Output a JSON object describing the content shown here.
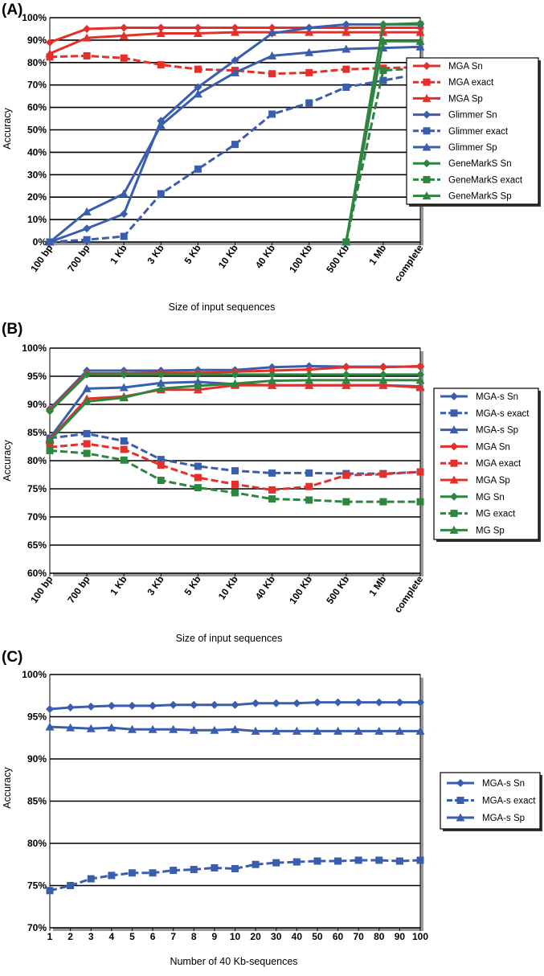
{
  "colors": {
    "MGA": "#e4302b",
    "Glimmer": "#3a5dae",
    "GeneMarkS": "#2e8540",
    "MGA-s": "#3a5dae",
    "MG": "#2e8540"
  },
  "chart_data": [
    {
      "panel_label": "(A)",
      "type": "line",
      "categories": [
        "100 bp",
        "700 bp",
        "1 Kb",
        "3 Kb",
        "5 Kb",
        "10 Kb",
        "40 Kb",
        "100 Kb",
        "500 Kb",
        "1 Mb",
        "complete"
      ],
      "ylim": [
        0,
        100
      ],
      "yticks": [
        0,
        10,
        20,
        30,
        40,
        50,
        60,
        70,
        80,
        90,
        100
      ],
      "ytick_labels": [
        "0%",
        "10%",
        "20%",
        "30%",
        "40%",
        "50%",
        "60%",
        "70%",
        "80%",
        "90%",
        "100%"
      ],
      "ylabel": "Accuracy",
      "xlabel": "Size of input sequences",
      "legend_position": "right",
      "series": [
        {
          "name": "MGA Sn",
          "color": "#e4302b",
          "marker": "diamond",
          "dash": false,
          "values": [
            89,
            95,
            95.5,
            95.5,
            95.5,
            95.5,
            95.5,
            95.5,
            95.5,
            95.5,
            95.5
          ]
        },
        {
          "name": "MGA exact",
          "color": "#e4302b",
          "marker": "square",
          "dash": true,
          "values": [
            82.5,
            83,
            82,
            79,
            77,
            76.5,
            75,
            75.5,
            77,
            77.5,
            78
          ]
        },
        {
          "name": "MGA Sp",
          "color": "#e4302b",
          "marker": "triangle",
          "dash": false,
          "values": [
            84,
            91,
            92,
            93,
            93,
            93.5,
            93.5,
            93.5,
            93.5,
            93.5,
            93.5
          ]
        },
        {
          "name": "Glimmer Sn",
          "color": "#3a5dae",
          "marker": "diamond",
          "dash": false,
          "values": [
            0,
            6,
            12.5,
            54,
            69,
            81,
            93,
            95.5,
            97,
            97,
            97
          ]
        },
        {
          "name": "Glimmer exact",
          "color": "#3a5dae",
          "marker": "square",
          "dash": true,
          "values": [
            0,
            1,
            2.5,
            21.5,
            32.5,
            43.5,
            57,
            62,
            69,
            72,
            75
          ]
        },
        {
          "name": "Glimmer Sp",
          "color": "#3a5dae",
          "marker": "triangle",
          "dash": false,
          "values": [
            0,
            13.5,
            21.5,
            52,
            66,
            75.5,
            83,
            84.5,
            86,
            86.5,
            87
          ]
        },
        {
          "name": "GeneMarkS Sn",
          "color": "#2e8540",
          "marker": "diamond",
          "dash": false,
          "values": [
            null,
            null,
            null,
            null,
            null,
            null,
            null,
            null,
            0,
            97,
            97.5
          ]
        },
        {
          "name": "GeneMarkS exact",
          "color": "#2e8540",
          "marker": "square",
          "dash": true,
          "values": [
            null,
            null,
            null,
            null,
            null,
            null,
            null,
            null,
            0,
            76.5,
            77.5
          ]
        },
        {
          "name": "GeneMarkS Sp",
          "color": "#2e8540",
          "marker": "triangle",
          "dash": false,
          "values": [
            null,
            null,
            null,
            null,
            null,
            null,
            null,
            null,
            0,
            89.5,
            89.5
          ]
        }
      ]
    },
    {
      "panel_label": "(B)",
      "type": "line",
      "categories": [
        "100 bp",
        "700 bp",
        "1 Kb",
        "3 Kb",
        "5 Kb",
        "10 Kb",
        "40 Kb",
        "100 Kb",
        "500 Kb",
        "1 Mb",
        "complete"
      ],
      "ylim": [
        60,
        100
      ],
      "yticks": [
        60,
        65,
        70,
        75,
        80,
        85,
        90,
        95,
        100
      ],
      "ytick_labels": [
        "60%",
        "65%",
        "70%",
        "75%",
        "80%",
        "85%",
        "90%",
        "95%",
        "100%"
      ],
      "ylabel": "Accuracy",
      "xlabel": "Size of input sequences",
      "legend_position": "right",
      "series": [
        {
          "name": "MGA-s Sn",
          "color": "#3a5dae",
          "marker": "diamond",
          "dash": false,
          "values": [
            89.2,
            96,
            96,
            96,
            96.1,
            96.1,
            96.6,
            96.8,
            96.7,
            96.7,
            96.7
          ]
        },
        {
          "name": "MGA-s exact",
          "color": "#3a5dae",
          "marker": "square",
          "dash": true,
          "values": [
            84,
            84.8,
            83.5,
            80.2,
            79,
            78.2,
            77.8,
            77.8,
            77.7,
            77.7,
            78
          ]
        },
        {
          "name": "MGA-s Sp",
          "color": "#3a5dae",
          "marker": "triangle",
          "dash": false,
          "values": [
            84,
            92.8,
            93,
            93.8,
            94,
            93.6,
            93.4,
            93.4,
            93.4,
            93.4,
            93.2
          ]
        },
        {
          "name": "MGA Sn",
          "color": "#e4302b",
          "marker": "diamond",
          "dash": false,
          "values": [
            89,
            95.5,
            95.5,
            95.6,
            95.6,
            95.8,
            96,
            96.2,
            96.6,
            96.6,
            96.8
          ]
        },
        {
          "name": "MGA exact",
          "color": "#e4302b",
          "marker": "square",
          "dash": true,
          "values": [
            82.4,
            83,
            82,
            79.2,
            77,
            75.8,
            74.8,
            75.4,
            77.4,
            77.6,
            78
          ]
        },
        {
          "name": "MGA Sp",
          "color": "#e4302b",
          "marker": "triangle",
          "dash": false,
          "values": [
            83.8,
            91,
            91.4,
            92.6,
            92.6,
            93.4,
            93.4,
            93.4,
            93.4,
            93.4,
            93
          ]
        },
        {
          "name": "MG Sn",
          "color": "#2e8540",
          "marker": "diamond",
          "dash": false,
          "values": [
            88.8,
            95.3,
            95.3,
            95.3,
            95.3,
            95.3,
            95.3,
            95.3,
            95.3,
            95.3,
            95.3
          ]
        },
        {
          "name": "MG exact",
          "color": "#2e8540",
          "marker": "square",
          "dash": true,
          "values": [
            81.8,
            81.3,
            80.1,
            76.5,
            75.2,
            74.3,
            73.2,
            73,
            72.7,
            72.7,
            72.7
          ]
        },
        {
          "name": "MG Sp",
          "color": "#2e8540",
          "marker": "triangle",
          "dash": false,
          "values": [
            83.6,
            90.5,
            91.2,
            92.8,
            93.3,
            93.7,
            94.2,
            94.3,
            94.3,
            94.3,
            94.3
          ]
        }
      ]
    },
    {
      "panel_label": "(C)",
      "type": "line",
      "categories": [
        "1",
        "2",
        "3",
        "4",
        "5",
        "6",
        "7",
        "8",
        "9",
        "10",
        "20",
        "30",
        "40",
        "50",
        "60",
        "70",
        "80",
        "90",
        "100"
      ],
      "ylim": [
        70,
        100
      ],
      "yticks": [
        70,
        75,
        80,
        85,
        90,
        95,
        100
      ],
      "ytick_labels": [
        "70%",
        "75%",
        "80%",
        "85%",
        "90%",
        "95%",
        "100%"
      ],
      "ylabel": "Accuracy",
      "xlabel": "Number of 40 Kb-sequences",
      "legend_position": "right",
      "series": [
        {
          "name": "MGA-s Sn",
          "color": "#3a5dae",
          "marker": "diamond",
          "dash": false,
          "values": [
            95.9,
            96.1,
            96.2,
            96.3,
            96.3,
            96.3,
            96.4,
            96.4,
            96.4,
            96.4,
            96.6,
            96.6,
            96.6,
            96.7,
            96.7,
            96.7,
            96.7,
            96.7,
            96.7
          ]
        },
        {
          "name": "MGA-s exact",
          "color": "#3a5dae",
          "marker": "square",
          "dash": true,
          "values": [
            74.4,
            75,
            75.8,
            76.2,
            76.5,
            76.5,
            76.8,
            76.9,
            77.1,
            77,
            77.5,
            77.7,
            77.8,
            77.9,
            77.9,
            78,
            78,
            77.9,
            78
          ]
        },
        {
          "name": "MGA-s Sp",
          "color": "#3a5dae",
          "marker": "triangle",
          "dash": false,
          "values": [
            93.8,
            93.7,
            93.6,
            93.7,
            93.5,
            93.5,
            93.5,
            93.4,
            93.4,
            93.5,
            93.3,
            93.3,
            93.3,
            93.3,
            93.3,
            93.3,
            93.3,
            93.3,
            93.3
          ]
        }
      ]
    }
  ]
}
